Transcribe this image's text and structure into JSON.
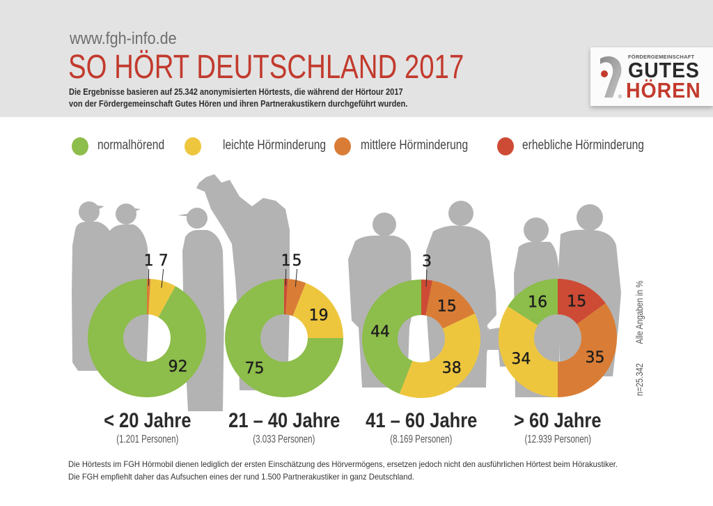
{
  "header": {
    "url": "www.fgh-info.de",
    "title": "SO HÖRT DEUTSCHLAND 2017",
    "subtitle_lines": [
      "Die Ergebnisse basieren auf 25.342 anonymisierten Hörtests, die während der Hörtour 2017",
      "von der Fördergemeinschaft Gutes Hören und ihren Partnerakustikern durchgeführt wurden."
    ]
  },
  "logo": {
    "top_text": "FÖRDERGEMEINSCHAFT",
    "line1": "GUTES",
    "line2": "HÖREN",
    "registered": "®"
  },
  "legend": [
    {
      "label": "normalhörend",
      "color": "#8dbd4a"
    },
    {
      "label": "leichte Hörminderung",
      "color": "#eec63e"
    },
    {
      "label": "mittlere Hörminderung",
      "color": "#d97d36"
    },
    {
      "label": "erhebliche Hörminderung",
      "color": "#cd4b35"
    }
  ],
  "side_notes": {
    "unit": "Alle Angaben in %",
    "sample": "n=25.342"
  },
  "footer": {
    "lines": [
      "Die Hörtests im FGH Hörmobil dienen lediglich der ersten Einschätzung des Hörvermögens, ersetzen jedoch nicht den ausführlichen Hörtest beim Hörakustiker.",
      "Die FGH empfiehlt daher das Aufsuchen eines der rund 1.500 Partnerakustiker in ganz Deutschland."
    ]
  },
  "chart_data": [
    {
      "type": "pie",
      "variant": "donut",
      "title": "< 20 Jahre",
      "subtitle": "(1.201 Personen)",
      "unit": "%",
      "categories": [
        "erhebliche Hörminderung",
        "mittlere Hörminderung",
        "leichte Hörminderung",
        "normalhörend"
      ],
      "values": [
        0,
        1,
        7,
        92
      ],
      "colors": [
        "#cd4b35",
        "#d97d36",
        "#eec63e",
        "#8dbd4a"
      ]
    },
    {
      "type": "pie",
      "variant": "donut",
      "title": "21 – 40 Jahre",
      "subtitle": "(3.033 Personen)",
      "unit": "%",
      "categories": [
        "erhebliche Hörminderung",
        "mittlere Hörminderung",
        "leichte Hörminderung",
        "normalhörend"
      ],
      "values": [
        1,
        5,
        19,
        75
      ],
      "colors": [
        "#cd4b35",
        "#d97d36",
        "#eec63e",
        "#8dbd4a"
      ]
    },
    {
      "type": "pie",
      "variant": "donut",
      "title": "41 – 60 Jahre",
      "subtitle": "(8.169 Personen)",
      "unit": "%",
      "categories": [
        "erhebliche Hörminderung",
        "mittlere Hörminderung",
        "leichte Hörminderung",
        "normalhörend"
      ],
      "values": [
        3,
        15,
        38,
        44
      ],
      "colors": [
        "#cd4b35",
        "#d97d36",
        "#eec63e",
        "#8dbd4a"
      ]
    },
    {
      "type": "pie",
      "variant": "donut",
      "title": "> 60 Jahre",
      "subtitle": "(12.939 Personen)",
      "unit": "%",
      "categories": [
        "erhebliche Hörminderung",
        "mittlere Hörminderung",
        "leichte Hörminderung",
        "normalhörend"
      ],
      "values": [
        15,
        35,
        34,
        16
      ],
      "colors": [
        "#cd4b35",
        "#d97d36",
        "#eec63e",
        "#8dbd4a"
      ]
    }
  ]
}
